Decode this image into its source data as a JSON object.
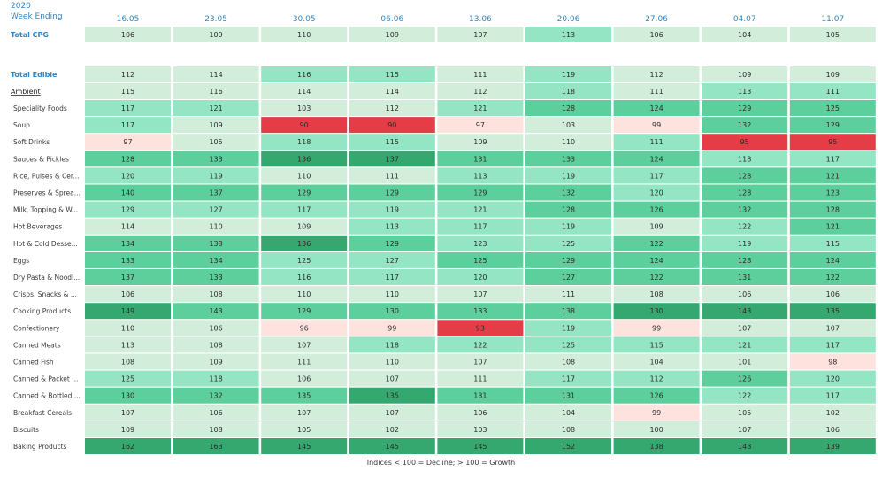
{
  "header": {
    "year": "2020",
    "week_label": "Week Ending"
  },
  "footnote": "Indices < 100 = Decline; > 100 = Growth",
  "chart_data": {
    "type": "heatmap",
    "x": [
      "16.05",
      "23.05",
      "30.05",
      "06.06",
      "13.06",
      "20.06",
      "27.06",
      "04.07",
      "11.07"
    ],
    "rows": [
      {
        "label": "Total CPG",
        "style": "total",
        "values": [
          106,
          109,
          110,
          109,
          107,
          113,
          106,
          104,
          105
        ]
      },
      {
        "label": "Total Edible",
        "style": "total",
        "values": [
          112,
          114,
          116,
          115,
          111,
          119,
          112,
          109,
          109
        ]
      },
      {
        "label": "Ambient",
        "style": "section",
        "values": [
          115,
          116,
          114,
          114,
          112,
          118,
          111,
          113,
          111
        ]
      },
      {
        "label": "Speciality Foods",
        "style": "item",
        "values": [
          117,
          121,
          103,
          112,
          121,
          128,
          124,
          129,
          125
        ]
      },
      {
        "label": "Soup",
        "style": "item",
        "values": [
          117,
          109,
          90,
          90,
          97,
          103,
          99,
          132,
          129
        ]
      },
      {
        "label": "Soft Drinks",
        "style": "item",
        "values": [
          97,
          105,
          118,
          115,
          109,
          110,
          111,
          95,
          95
        ]
      },
      {
        "label": "Sauces & Pickles",
        "style": "item",
        "values": [
          128,
          133,
          136,
          137,
          131,
          133,
          124,
          118,
          117
        ]
      },
      {
        "label": "Rice, Pulses & Cer...",
        "style": "item",
        "values": [
          120,
          119,
          110,
          111,
          113,
          119,
          117,
          128,
          121
        ]
      },
      {
        "label": "Preserves & Sprea...",
        "style": "item",
        "values": [
          140,
          137,
          129,
          129,
          129,
          132,
          120,
          128,
          123
        ]
      },
      {
        "label": "Milk, Topping & W...",
        "style": "item",
        "values": [
          129,
          127,
          117,
          119,
          121,
          128,
          126,
          132,
          128
        ]
      },
      {
        "label": "Hot Beverages",
        "style": "item",
        "values": [
          114,
          110,
          109,
          113,
          117,
          119,
          109,
          122,
          121
        ]
      },
      {
        "label": "Hot & Cold Desse...",
        "style": "item",
        "values": [
          134,
          138,
          136,
          129,
          123,
          125,
          122,
          119,
          115
        ]
      },
      {
        "label": "Eggs",
        "style": "item",
        "values": [
          133,
          134,
          125,
          127,
          125,
          129,
          124,
          128,
          124
        ]
      },
      {
        "label": "Dry Pasta & Noodl...",
        "style": "item",
        "values": [
          137,
          133,
          116,
          117,
          120,
          127,
          122,
          131,
          122
        ]
      },
      {
        "label": "Crisps, Snacks & ...",
        "style": "item",
        "values": [
          106,
          108,
          110,
          110,
          107,
          111,
          108,
          106,
          106
        ]
      },
      {
        "label": "Cooking Products",
        "style": "item",
        "values": [
          149,
          143,
          129,
          130,
          133,
          138,
          130,
          143,
          135
        ]
      },
      {
        "label": "Confectionery",
        "style": "item",
        "values": [
          110,
          106,
          96,
          99,
          93,
          119,
          99,
          107,
          107
        ]
      },
      {
        "label": "Canned Meats",
        "style": "item",
        "values": [
          113,
          108,
          107,
          118,
          122,
          125,
          115,
          121,
          117
        ]
      },
      {
        "label": "Canned Fish",
        "style": "item",
        "values": [
          108,
          109,
          111,
          110,
          107,
          108,
          104,
          101,
          98
        ]
      },
      {
        "label": "Canned & Packet ...",
        "style": "item",
        "values": [
          125,
          118,
          106,
          107,
          111,
          117,
          112,
          126,
          120
        ]
      },
      {
        "label": "Canned & Bottled ...",
        "style": "item",
        "values": [
          130,
          132,
          135,
          135,
          131,
          131,
          126,
          122,
          117
        ]
      },
      {
        "label": "Breakfast Cereals",
        "style": "item",
        "values": [
          107,
          106,
          107,
          107,
          106,
          104,
          99,
          105,
          102
        ]
      },
      {
        "label": "Biscuits",
        "style": "item",
        "values": [
          109,
          108,
          105,
          102,
          103,
          108,
          100,
          107,
          106
        ]
      },
      {
        "label": "Baking Products",
        "style": "item",
        "values": [
          162,
          163,
          145,
          145,
          145,
          152,
          138,
          148,
          139
        ]
      }
    ],
    "cell_colors": [
      [
        "#d2eedb",
        "#d2eedb",
        "#d2eedb",
        "#d2eedb",
        "#d2eedb",
        "#93e5c4",
        "#d2eedb",
        "#d2eedb",
        "#d2eedb"
      ],
      [
        "#d2eedb",
        "#d2eedb",
        "#93e5c4",
        "#93e5c4",
        "#d2eedb",
        "#93e5c4",
        "#d2eedb",
        "#d2eedb",
        "#d2eedb"
      ],
      [
        "#d2eedb",
        "#d2eedb",
        "#d2eedb",
        "#d2eedb",
        "#d2eedb",
        "#93e5c4",
        "#d2eedb",
        "#93e5c4",
        "#93e5c4"
      ],
      [
        "#93e5c4",
        "#93e5c4",
        "#d2eedb",
        "#d2eedb",
        "#93e5c4",
        "#5dcf9c",
        "#5dcf9c",
        "#5dcf9c",
        "#5dcf9c"
      ],
      [
        "#93e5c4",
        "#d2eedb",
        "#e53d47",
        "#e53d47",
        "#fde2dd",
        "#d2eedb",
        "#fde2dd",
        "#5dcf9c",
        "#5dcf9c"
      ],
      [
        "#fde2dd",
        "#d2eedb",
        "#93e5c4",
        "#93e5c4",
        "#d2eedb",
        "#d2eedb",
        "#93e5c4",
        "#e53d47",
        "#e53d47"
      ],
      [
        "#5dcf9c",
        "#5dcf9c",
        "#35a870",
        "#35a870",
        "#5dcf9c",
        "#5dcf9c",
        "#5dcf9c",
        "#93e5c4",
        "#93e5c4"
      ],
      [
        "#93e5c4",
        "#93e5c4",
        "#d2eedb",
        "#d2eedb",
        "#93e5c4",
        "#93e5c4",
        "#93e5c4",
        "#5dcf9c",
        "#5dcf9c"
      ],
      [
        "#5dcf9c",
        "#5dcf9c",
        "#5dcf9c",
        "#5dcf9c",
        "#5dcf9c",
        "#5dcf9c",
        "#93e5c4",
        "#5dcf9c",
        "#5dcf9c"
      ],
      [
        "#93e5c4",
        "#93e5c4",
        "#93e5c4",
        "#93e5c4",
        "#93e5c4",
        "#5dcf9c",
        "#5dcf9c",
        "#5dcf9c",
        "#5dcf9c"
      ],
      [
        "#d2eedb",
        "#d2eedb",
        "#d2eedb",
        "#93e5c4",
        "#93e5c4",
        "#93e5c4",
        "#d2eedb",
        "#93e5c4",
        "#5dcf9c"
      ],
      [
        "#5dcf9c",
        "#5dcf9c",
        "#35a870",
        "#5dcf9c",
        "#93e5c4",
        "#93e5c4",
        "#5dcf9c",
        "#93e5c4",
        "#93e5c4"
      ],
      [
        "#5dcf9c",
        "#5dcf9c",
        "#93e5c4",
        "#93e5c4",
        "#5dcf9c",
        "#5dcf9c",
        "#5dcf9c",
        "#5dcf9c",
        "#5dcf9c"
      ],
      [
        "#5dcf9c",
        "#5dcf9c",
        "#93e5c4",
        "#93e5c4",
        "#93e5c4",
        "#5dcf9c",
        "#5dcf9c",
        "#5dcf9c",
        "#5dcf9c"
      ],
      [
        "#d2eedb",
        "#d2eedb",
        "#d2eedb",
        "#d2eedb",
        "#d2eedb",
        "#d2eedb",
        "#d2eedb",
        "#d2eedb",
        "#d2eedb"
      ],
      [
        "#35a870",
        "#5dcf9c",
        "#5dcf9c",
        "#5dcf9c",
        "#5dcf9c",
        "#5dcf9c",
        "#35a870",
        "#35a870",
        "#35a870"
      ],
      [
        "#d2eedb",
        "#d2eedb",
        "#fde2dd",
        "#fde2dd",
        "#e53d47",
        "#93e5c4",
        "#fde2dd",
        "#d2eedb",
        "#d2eedb"
      ],
      [
        "#d2eedb",
        "#d2eedb",
        "#d2eedb",
        "#93e5c4",
        "#93e5c4",
        "#93e5c4",
        "#93e5c4",
        "#93e5c4",
        "#93e5c4"
      ],
      [
        "#d2eedb",
        "#d2eedb",
        "#d2eedb",
        "#d2eedb",
        "#d2eedb",
        "#d2eedb",
        "#d2eedb",
        "#d2eedb",
        "#fde2dd"
      ],
      [
        "#93e5c4",
        "#93e5c4",
        "#d2eedb",
        "#d2eedb",
        "#d2eedb",
        "#93e5c4",
        "#93e5c4",
        "#5dcf9c",
        "#93e5c4"
      ],
      [
        "#5dcf9c",
        "#5dcf9c",
        "#5dcf9c",
        "#35a870",
        "#5dcf9c",
        "#5dcf9c",
        "#5dcf9c",
        "#93e5c4",
        "#93e5c4"
      ],
      [
        "#d2eedb",
        "#d2eedb",
        "#d2eedb",
        "#d2eedb",
        "#d2eedb",
        "#d2eedb",
        "#fde2dd",
        "#d2eedb",
        "#d2eedb"
      ],
      [
        "#d2eedb",
        "#d2eedb",
        "#d2eedb",
        "#d2eedb",
        "#d2eedb",
        "#d2eedb",
        "#d2eedb",
        "#d2eedb",
        "#d2eedb"
      ],
      [
        "#35a870",
        "#35a870",
        "#35a870",
        "#35a870",
        "#35a870",
        "#35a870",
        "#35a870",
        "#35a870",
        "#35a870"
      ]
    ],
    "legend": "none",
    "grid": false
  },
  "colors": {
    "header_text": "#2f86c8",
    "label_text": "#3a3a3a",
    "cell_text": "#2b2b2b",
    "strong_decline": "#e53d47",
    "decline": "#fde2dd",
    "growth_low": "#d2eedb",
    "growth_mid": "#93e5c4",
    "growth_high": "#5dcf9c",
    "growth_top": "#35a870"
  }
}
